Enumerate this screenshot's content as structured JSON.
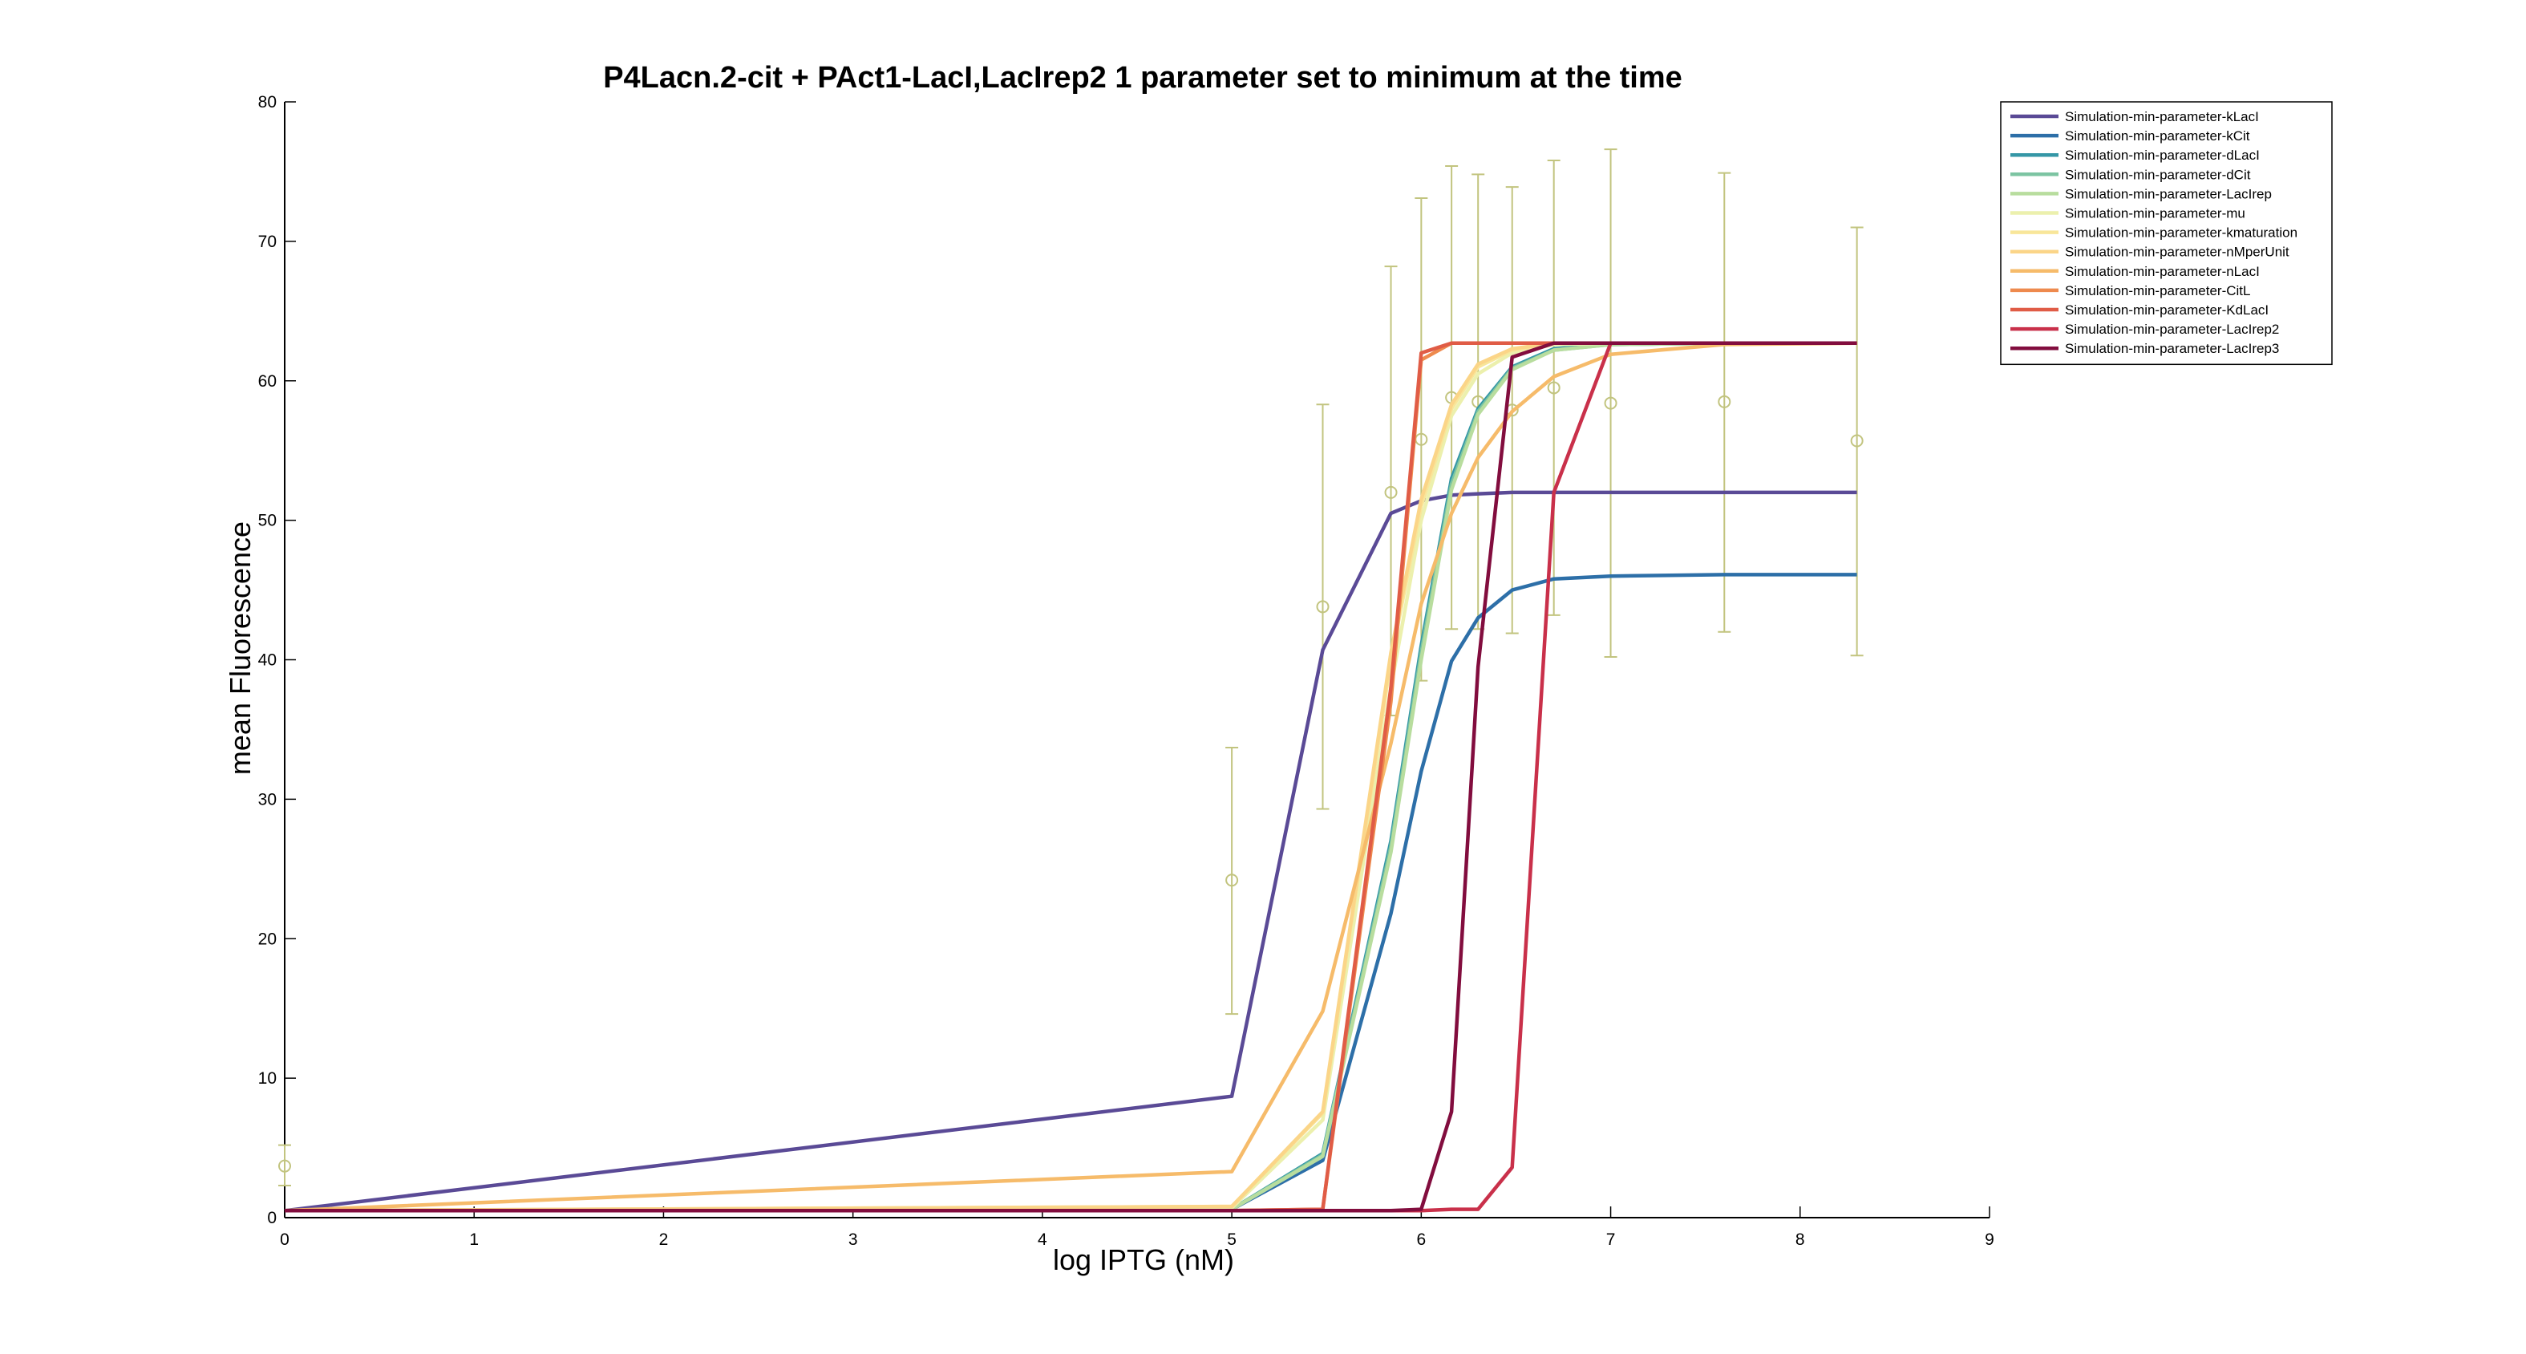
{
  "chart_data": {
    "type": "line",
    "title": "P4Lacn.2-cit + PAct1-LacI,LacIrep2 1 parameter set to minimum at the time",
    "xlabel": "log IPTG (nM)",
    "ylabel": "mean Fluorescence",
    "xlim": [
      0,
      9
    ],
    "ylim": [
      0,
      80
    ],
    "xticks": [
      0,
      1,
      2,
      3,
      4,
      5,
      6,
      7,
      8,
      9
    ],
    "yticks": [
      0,
      10,
      20,
      30,
      40,
      50,
      60,
      70,
      80
    ],
    "grid": false,
    "legend_position": "outside-top-right",
    "x": [
      0,
      5,
      5.48,
      5.84,
      6,
      6.16,
      6.3,
      6.48,
      6.7,
      7,
      7.6,
      8.3
    ],
    "series": [
      {
        "name": "Simulation-min-parameter-kLacI",
        "color": "#5a4a96",
        "values": [
          0.5,
          8.7,
          40.7,
          50.5,
          51.4,
          51.8,
          51.9,
          52.0,
          52.0,
          52.0,
          52.0,
          52.0
        ]
      },
      {
        "name": "Simulation-min-parameter-kCit",
        "color": "#2d6fa8",
        "values": [
          0.5,
          0.6,
          4.1,
          21.8,
          32.0,
          39.9,
          43.0,
          45.0,
          45.8,
          46.0,
          46.1,
          46.1
        ]
      },
      {
        "name": "Simulation-min-parameter-dLacI",
        "color": "#3597a6",
        "values": [
          0.5,
          0.6,
          4.6,
          27.0,
          41.0,
          53.0,
          58.0,
          61.0,
          62.3,
          62.6,
          62.7,
          62.7
        ]
      },
      {
        "name": "Simulation-min-parameter-dCit",
        "color": "#7cc4a2",
        "values": [
          0.5,
          0.6,
          4.5,
          26.6,
          40.5,
          52.6,
          57.8,
          60.9,
          62.2,
          62.6,
          62.7,
          62.7
        ]
      },
      {
        "name": "Simulation-min-parameter-LacIrep",
        "color": "#b8dd9e",
        "values": [
          0.5,
          0.6,
          4.4,
          26.2,
          40.0,
          52.2,
          57.6,
          60.8,
          62.2,
          62.6,
          62.7,
          62.7
        ]
      },
      {
        "name": "Simulation-min-parameter-mu",
        "color": "#ecf0ad",
        "values": [
          0.5,
          0.7,
          7.0,
          38.0,
          50.0,
          57.5,
          60.5,
          62.0,
          62.6,
          62.7,
          62.7,
          62.7
        ]
      },
      {
        "name": "Simulation-min-parameter-kmaturation",
        "color": "#f8e69a",
        "values": [
          0.5,
          0.8,
          7.5,
          40.0,
          51.0,
          58.0,
          61.0,
          62.2,
          62.7,
          62.7,
          62.7,
          62.7
        ]
      },
      {
        "name": "Simulation-min-parameter-nMperUnit",
        "color": "#fbd588",
        "values": [
          0.5,
          0.8,
          7.6,
          40.5,
          51.5,
          58.3,
          61.2,
          62.3,
          62.7,
          62.7,
          62.7,
          62.7
        ]
      },
      {
        "name": "Simulation-min-parameter-nLacI",
        "color": "#f6bb6a",
        "values": [
          0.5,
          3.3,
          14.8,
          34.0,
          44.0,
          50.5,
          54.5,
          57.8,
          60.3,
          61.9,
          62.6,
          62.7
        ]
      },
      {
        "name": "Simulation-min-parameter-CitL",
        "color": "#ee8a4e",
        "values": [
          0.5,
          0.5,
          0.6,
          37.0,
          61.5,
          62.7,
          62.7,
          62.7,
          62.7,
          62.7,
          62.7,
          62.7
        ]
      },
      {
        "name": "Simulation-min-parameter-KdLacI",
        "color": "#e05c46",
        "values": [
          0.5,
          0.5,
          0.6,
          38.0,
          62.0,
          62.7,
          62.7,
          62.7,
          62.7,
          62.7,
          62.7,
          62.7
        ]
      },
      {
        "name": "Simulation-min-parameter-LacIrep2",
        "color": "#c9304a",
        "values": [
          0.5,
          0.5,
          0.5,
          0.5,
          0.5,
          0.6,
          0.6,
          3.6,
          52.0,
          62.7,
          62.7,
          62.7
        ]
      },
      {
        "name": "Simulation-min-parameter-LacIrep3",
        "color": "#820d3e",
        "values": [
          0.5,
          0.5,
          0.5,
          0.5,
          0.6,
          7.6,
          39.5,
          61.7,
          62.7,
          62.7,
          62.7,
          62.7
        ]
      }
    ],
    "experimental": {
      "color": "#c2c47f",
      "x": [
        0,
        5,
        5.48,
        5.84,
        6,
        6.16,
        6.3,
        6.48,
        6.7,
        7,
        7.6,
        8.3
      ],
      "y": [
        3.7,
        24.2,
        43.8,
        52.0,
        55.8,
        58.8,
        58.5,
        57.9,
        59.5,
        58.4,
        58.5,
        55.7
      ],
      "err_low": [
        2.3,
        14.6,
        29.3,
        36.0,
        38.5,
        42.2,
        42.2,
        41.9,
        43.2,
        40.2,
        42.0,
        40.3
      ],
      "err_high": [
        5.2,
        33.7,
        58.3,
        68.2,
        73.1,
        75.4,
        74.8,
        73.9,
        75.8,
        76.6,
        74.9,
        71.0
      ]
    }
  }
}
